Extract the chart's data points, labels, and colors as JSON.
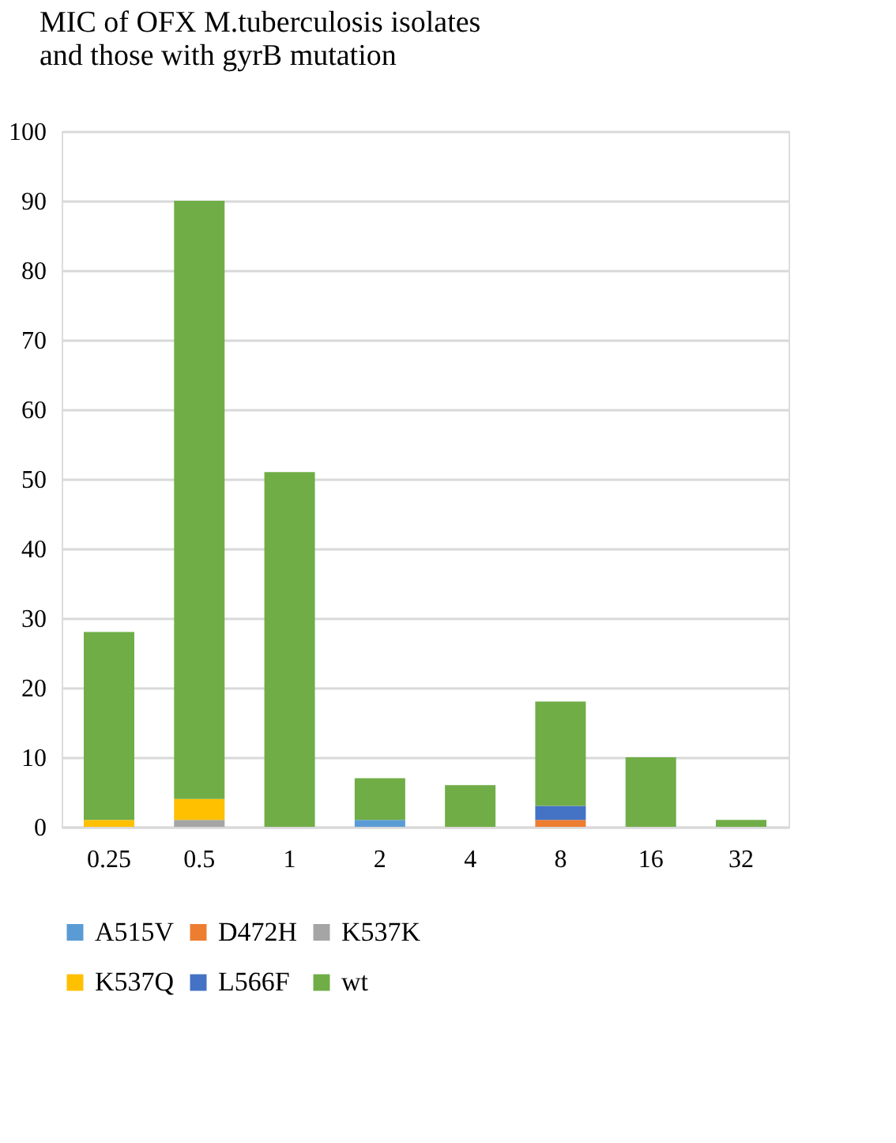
{
  "chart_data": {
    "type": "bar",
    "title": "MIC of OFX M.tuberculosis isolates and those with gyrB mutation",
    "stacked": true,
    "categories": [
      "0.25",
      "0.5",
      "1",
      "2",
      "4",
      "8",
      "16",
      "32"
    ],
    "series": [
      {
        "name": "A515V",
        "color": "#5b9bd5",
        "values": [
          0,
          0,
          0,
          1,
          0,
          0,
          0,
          0
        ]
      },
      {
        "name": "D472H",
        "color": "#ed7d31",
        "values": [
          0,
          0,
          0,
          0,
          0,
          1,
          0,
          0
        ]
      },
      {
        "name": "K537K",
        "color": "#a5a5a5",
        "values": [
          0,
          1,
          0,
          0,
          0,
          0,
          0,
          0
        ]
      },
      {
        "name": "K537Q",
        "color": "#ffc000",
        "values": [
          1,
          3,
          0,
          0,
          0,
          0,
          0,
          0
        ]
      },
      {
        "name": "L566F",
        "color": "#4472c4",
        "values": [
          0,
          0,
          0,
          0,
          0,
          2,
          0,
          0
        ]
      },
      {
        "name": "wt",
        "color": "#70ad47",
        "values": [
          27,
          86,
          51,
          6,
          6,
          15,
          10,
          1
        ]
      }
    ],
    "ylim": [
      0,
      100
    ],
    "yticks": [
      0,
      10,
      20,
      30,
      40,
      50,
      60,
      70,
      80,
      90,
      100
    ],
    "grid": "y",
    "legend": "bottom"
  }
}
